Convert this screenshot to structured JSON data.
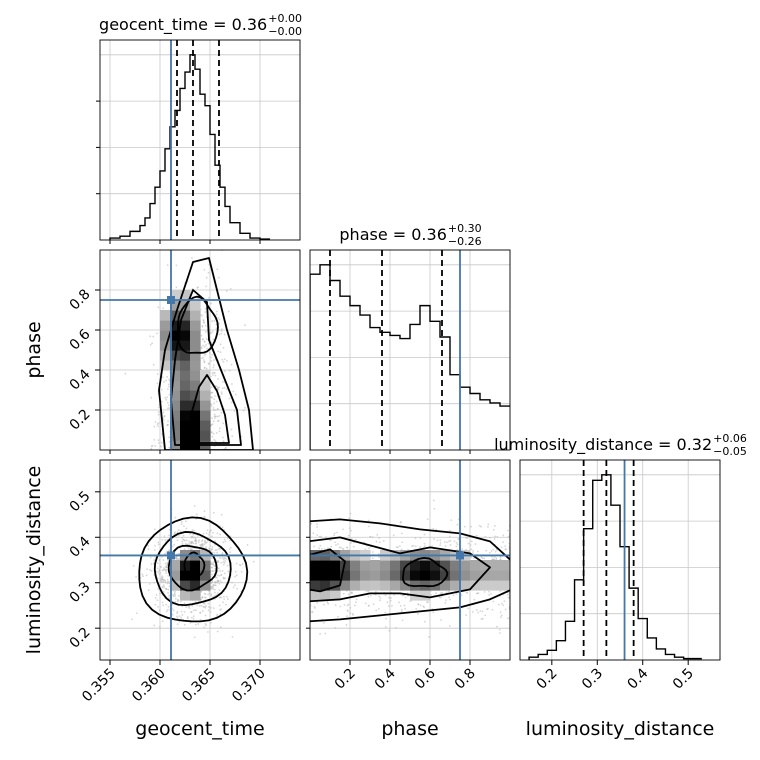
{
  "chart_data": {
    "type": "corner",
    "parameters": [
      "geocent_time",
      "phase",
      "luminosity_distance"
    ],
    "truths": {
      "geocent_time": 0.3611,
      "phase": 0.75,
      "luminosity_distance": 0.36
    },
    "colors": {
      "truth": "#4477aa",
      "hist": "#000000",
      "grid": "#c8c8c8",
      "points": "#b5b5b5"
    },
    "diagonal": [
      {
        "parameter": "geocent_time",
        "title_main": "geocent_time = 0.36",
        "title_plus": "+0.00",
        "title_minus": "−0.00",
        "xlim": [
          0.354,
          0.374
        ],
        "quantiles": [
          0.3617,
          0.3633,
          0.3659
        ],
        "bin_edges": [
          0.355,
          0.356,
          0.357,
          0.358,
          0.3585,
          0.359,
          0.3595,
          0.36,
          0.3605,
          0.361,
          0.3615,
          0.362,
          0.3625,
          0.363,
          0.3635,
          0.364,
          0.3645,
          0.365,
          0.3655,
          0.366,
          0.3665,
          0.367,
          0.368,
          0.369,
          0.37,
          0.371
        ],
        "counts": [
          2,
          4,
          9,
          15,
          23,
          38,
          55,
          72,
          95,
          118,
          135,
          158,
          175,
          193,
          178,
          152,
          140,
          110,
          78,
          55,
          35,
          18,
          7,
          2,
          1
        ]
      },
      {
        "parameter": "phase",
        "title_main": "phase = 0.36",
        "title_plus": "+0.30",
        "title_minus": "−0.26",
        "xlim": [
          0.0,
          1.0
        ],
        "quantiles": [
          0.1,
          0.36,
          0.66
        ],
        "bin_edges": [
          0.0,
          0.05,
          0.1,
          0.15,
          0.2,
          0.25,
          0.3,
          0.35,
          0.4,
          0.45,
          0.5,
          0.55,
          0.6,
          0.65,
          0.7,
          0.75,
          0.8,
          0.85,
          0.9,
          0.95,
          1.0
        ],
        "counts": [
          112,
          118,
          108,
          98,
          92,
          86,
          78,
          75,
          73,
          71,
          80,
          92,
          82,
          72,
          48,
          40,
          36,
          32,
          30,
          28
        ]
      },
      {
        "parameter": "luminosity_distance",
        "title_main": "luminosity_distance = 0.32",
        "title_plus": "+0.06",
        "title_minus": "−0.05",
        "xlim": [
          0.13,
          0.57
        ],
        "quantiles": [
          0.27,
          0.32,
          0.38
        ],
        "bin_edges": [
          0.15,
          0.17,
          0.19,
          0.21,
          0.23,
          0.25,
          0.27,
          0.29,
          0.31,
          0.33,
          0.35,
          0.37,
          0.39,
          0.41,
          0.43,
          0.45,
          0.47,
          0.49,
          0.51,
          0.53
        ],
        "counts": [
          2,
          4,
          7,
          14,
          28,
          58,
          95,
          130,
          134,
          112,
          82,
          52,
          30,
          16,
          8,
          4,
          2,
          1,
          1
        ]
      }
    ],
    "off_diagonal": [
      {
        "x_param": "geocent_time",
        "y_param": "phase",
        "xlim": [
          0.354,
          0.374
        ],
        "ylim": [
          0.0,
          1.0
        ]
      },
      {
        "x_param": "geocent_time",
        "y_param": "luminosity_distance",
        "xlim": [
          0.354,
          0.374
        ],
        "ylim": [
          0.13,
          0.57
        ]
      },
      {
        "x_param": "phase",
        "y_param": "luminosity_distance",
        "xlim": [
          0.0,
          1.0
        ],
        "ylim": [
          0.13,
          0.57
        ]
      }
    ],
    "ticks": {
      "geocent_time": {
        "values": [
          0.355,
          0.36,
          0.365,
          0.37
        ],
        "labels": [
          "0.355",
          "0.360",
          "0.365",
          "0.370"
        ]
      },
      "phase": {
        "values": [
          0.2,
          0.4,
          0.6,
          0.8
        ],
        "labels": [
          "0.2",
          "0.4",
          "0.6",
          "0.8"
        ]
      },
      "luminosity_distance": {
        "values": [
          0.2,
          0.3,
          0.4,
          0.5
        ],
        "labels": [
          "0.2",
          "0.3",
          "0.4",
          "0.5"
        ]
      }
    },
    "axis_labels": {
      "x": [
        "geocent_time",
        "phase",
        "luminosity_distance"
      ],
      "y": [
        "phase",
        "luminosity_distance"
      ]
    },
    "grid": true
  }
}
